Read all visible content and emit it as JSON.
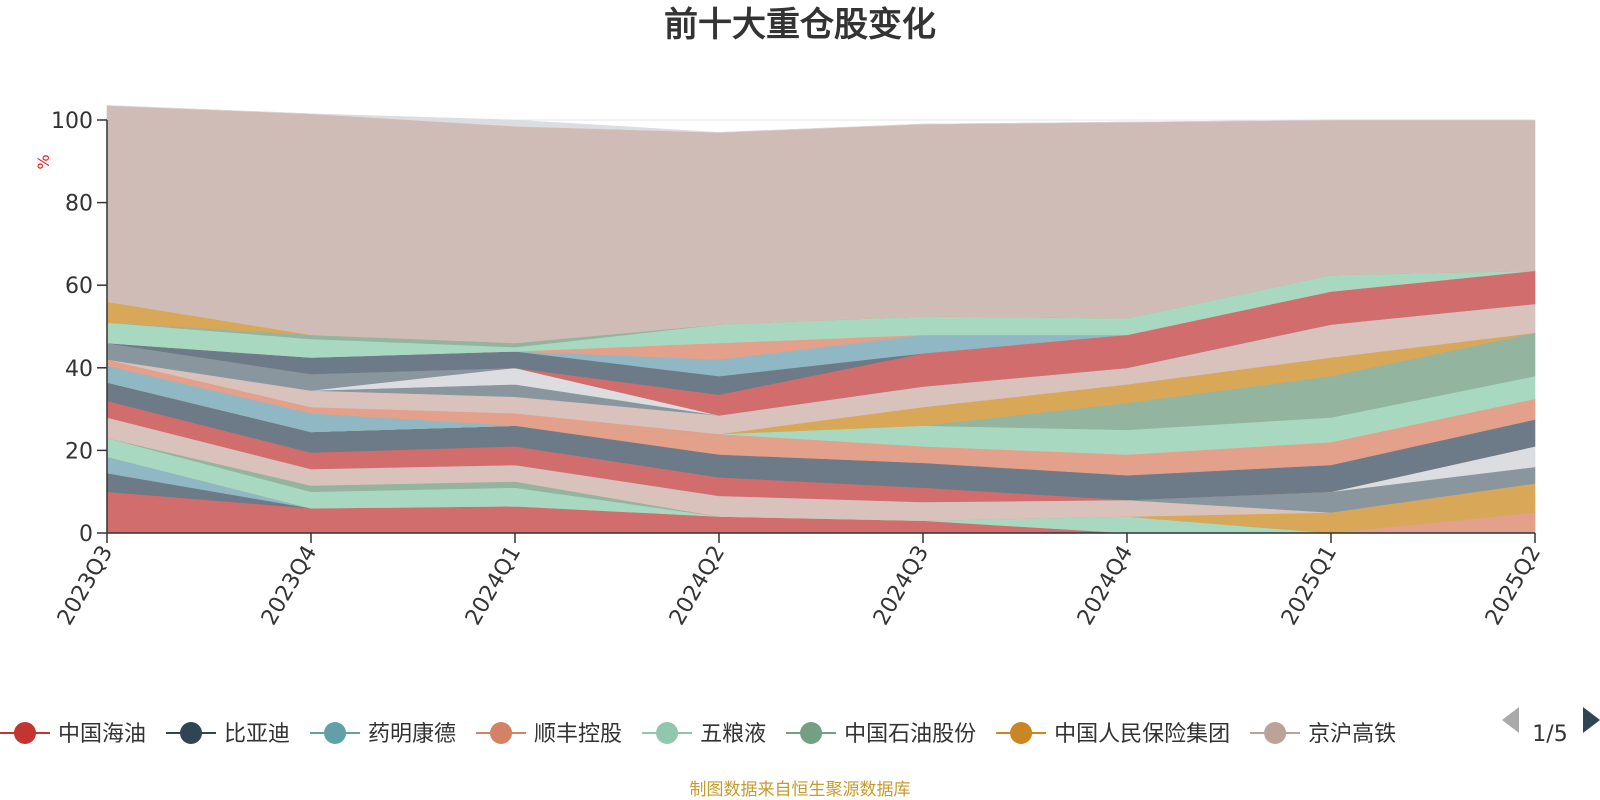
{
  "chart_data": {
    "type": "area",
    "stacked": true,
    "title": "前十大重仓股变化",
    "ylabel": "%",
    "ylim": [
      0,
      100
    ],
    "yticks": [
      0,
      20,
      40,
      60,
      80,
      100
    ],
    "grid": true,
    "categories": [
      "2023Q3",
      "2023Q4",
      "2024Q1",
      "2024Q2",
      "2024Q3",
      "2024Q4",
      "2025Q1",
      "2025Q2"
    ],
    "series": [
      {
        "color": "#d16d6d",
        "values": [
          10,
          6,
          6.5,
          4,
          3,
          0,
          0,
          0
        ]
      },
      {
        "color": "#6c7b87",
        "values": [
          4.5,
          0,
          0,
          0,
          0,
          0,
          0,
          0
        ]
      },
      {
        "color": "#8fb8c4",
        "values": [
          4,
          0,
          0,
          0,
          0,
          0,
          0,
          0
        ]
      },
      {
        "color": "#e3a08a",
        "values": [
          0,
          0,
          0,
          0,
          0,
          0,
          0,
          5
        ]
      },
      {
        "color": "#a8d8c0",
        "values": [
          4.5,
          4,
          4.5,
          0,
          0,
          4,
          0,
          0
        ]
      },
      {
        "color": "#93b49e",
        "values": [
          0,
          1.5,
          1.5,
          0,
          0,
          0,
          0,
          0
        ]
      },
      {
        "color": "#d8a858",
        "values": [
          0,
          0,
          0,
          0,
          0,
          0,
          5,
          7
        ]
      },
      {
        "color": "#d9c2bc",
        "values": [
          5,
          4,
          4,
          5,
          4.5,
          4,
          0,
          0
        ]
      },
      {
        "color": "#8a969e",
        "values": [
          0,
          0,
          0,
          0,
          0,
          0,
          5,
          4
        ]
      },
      {
        "color": "#dcdde0",
        "values": [
          0,
          0,
          0,
          0,
          0,
          0,
          0,
          5
        ]
      },
      {
        "color": "#d16d6d",
        "values": [
          4,
          4,
          4.5,
          4.5,
          3.5,
          0,
          0,
          0
        ]
      },
      {
        "color": "#6c7b87",
        "values": [
          4.5,
          5,
          5,
          5.5,
          6,
          6,
          6.5,
          6.5
        ]
      },
      {
        "color": "#e3a08a",
        "values": [
          0,
          0,
          0,
          5,
          4,
          5,
          5.5,
          5
        ]
      },
      {
        "color": "#a8d8c0",
        "values": [
          0,
          0,
          0,
          0,
          5,
          6,
          6,
          5.5
        ]
      },
      {
        "color": "#93b49e",
        "values": [
          0,
          0,
          0,
          0,
          0,
          6.5,
          10,
          10.5
        ]
      },
      {
        "color": "#d8a858",
        "values": [
          0,
          0,
          0,
          0,
          4.5,
          4.5,
          4.5,
          0
        ]
      },
      {
        "color": "#8fb8c4",
        "values": [
          4,
          4.5,
          0,
          0,
          0,
          0,
          0,
          0
        ]
      },
      {
        "color": "#e3a08a",
        "values": [
          1.5,
          1.5,
          3,
          0,
          0,
          0,
          0,
          0
        ]
      },
      {
        "color": "#d9c2bc",
        "values": [
          0,
          4,
          4,
          4.5,
          5,
          4,
          8,
          7
        ]
      },
      {
        "color": "#8a969e",
        "values": [
          0,
          0,
          3,
          0,
          0,
          0,
          0,
          0
        ]
      },
      {
        "color": "#dcdde0",
        "values": [
          0,
          0,
          4,
          0,
          0,
          0,
          0,
          0
        ]
      },
      {
        "color": "#8a969e",
        "values": [
          4,
          4,
          0,
          0,
          0,
          0,
          0,
          0
        ]
      },
      {
        "color": "#d16d6d",
        "values": [
          0,
          0,
          0,
          5,
          8,
          8,
          8,
          8
        ]
      },
      {
        "color": "#6c7b87",
        "values": [
          0,
          4,
          4,
          4.5,
          0,
          0,
          0,
          0
        ]
      },
      {
        "color": "#8fb8c4",
        "values": [
          0,
          0,
          0,
          4,
          4.5,
          0,
          0,
          0
        ]
      },
      {
        "color": "#e3a08a",
        "values": [
          0,
          0,
          0,
          4,
          0,
          0,
          0,
          0
        ]
      },
      {
        "color": "#a8d8c0",
        "values": [
          5,
          4.5,
          1,
          4.5,
          4.5,
          4,
          4,
          0
        ]
      },
      {
        "color": "#93b49e",
        "values": [
          0,
          1,
          1,
          0,
          0,
          0,
          0,
          0
        ]
      },
      {
        "color": "#d8a858",
        "values": [
          5,
          0,
          0,
          0,
          0,
          0,
          0,
          0
        ]
      },
      {
        "color": "#d0bcb6",
        "values": [
          47.5,
          53.5,
          52.5,
          46.5,
          46.5,
          47.5,
          37.5,
          36.5
        ]
      },
      {
        "color": "#dcdde0",
        "values": [
          0,
          0,
          1.5,
          0,
          0,
          0,
          0,
          0
        ]
      }
    ],
    "legend_position": "bottom",
    "legend": [
      {
        "name": "中国海油",
        "color": "#c23531"
      },
      {
        "name": "比亚迪",
        "color": "#2f4554"
      },
      {
        "name": "药明康德",
        "color": "#61a0a8"
      },
      {
        "name": "顺丰控股",
        "color": "#d48265"
      },
      {
        "name": "五粮液",
        "color": "#91c7ae"
      },
      {
        "name": "中国石油股份",
        "color": "#749f83"
      },
      {
        "name": "中国人民保险集团",
        "color": "#ca8622"
      },
      {
        "name": "京沪高铁",
        "color": "#bda29a"
      }
    ],
    "pager": "1/5",
    "footer": "制图数据来自恒生聚源数据库"
  }
}
